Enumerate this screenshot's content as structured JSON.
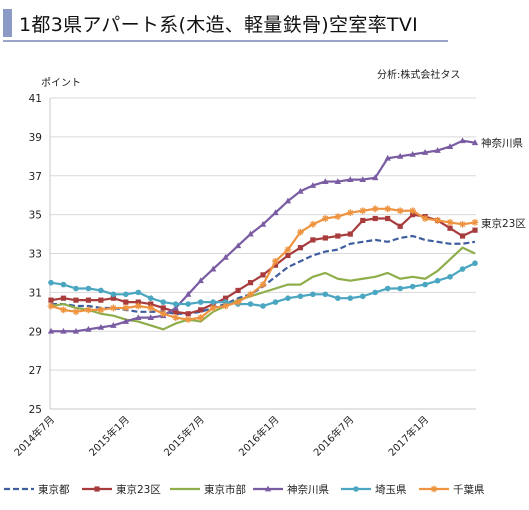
{
  "title": "1都3県アパート系(木造、軽量鉄骨)空室率TVI",
  "chart_data": {
    "type": "line",
    "ylabel": "ポイント",
    "source_note": "分析:株式会社タス",
    "ylim": [
      25,
      41
    ],
    "yticks": [
      25,
      27,
      29,
      31,
      33,
      35,
      37,
      39,
      41
    ],
    "grid": "horizontal",
    "legend_placement": "bottom",
    "x": [
      "2014年7月",
      "2014年8月",
      "2014年9月",
      "2014年10月",
      "2014年11月",
      "2014年12月",
      "2015年1月",
      "2015年2月",
      "2015年3月",
      "2015年4月",
      "2015年5月",
      "2015年6月",
      "2015年7月",
      "2015年8月",
      "2015年9月",
      "2015年10月",
      "2015年11月",
      "2015年12月",
      "2016年1月",
      "2016年2月",
      "2016年3月",
      "2016年4月",
      "2016年5月",
      "2016年6月",
      "2016年7月",
      "2016年8月",
      "2016年9月",
      "2016年10月",
      "2016年11月",
      "2016年12月",
      "2017年1月",
      "2017年2月",
      "2017年3月",
      "2017年4月",
      "2017年5月"
    ],
    "xtick_labels": [
      {
        "index": 0,
        "label": "2014年7月"
      },
      {
        "index": 6,
        "label": "2015年1月"
      },
      {
        "index": 12,
        "label": "2015年7月"
      },
      {
        "index": 18,
        "label": "2016年1月"
      },
      {
        "index": 24,
        "label": "2016年7月"
      },
      {
        "index": 30,
        "label": "2017年1月"
      }
    ],
    "series": [
      {
        "name": "東京都",
        "color": "#3f5e9f",
        "dash": true,
        "marker": "none",
        "values": [
          30.4,
          30.4,
          30.3,
          30.3,
          30.2,
          30.2,
          30.1,
          30.0,
          30.0,
          30.0,
          29.9,
          29.9,
          30.0,
          30.2,
          30.4,
          30.7,
          30.9,
          31.3,
          31.8,
          32.3,
          32.6,
          32.9,
          33.1,
          33.2,
          33.5,
          33.6,
          33.7,
          33.6,
          33.8,
          33.9,
          33.7,
          33.6,
          33.5,
          33.5,
          33.6
        ]
      },
      {
        "name": "東京23区",
        "color": "#a83c3c",
        "dash": false,
        "marker": "square",
        "values": [
          30.6,
          30.7,
          30.6,
          30.6,
          30.6,
          30.7,
          30.5,
          30.5,
          30.4,
          30.2,
          30.0,
          29.9,
          30.1,
          30.4,
          30.7,
          31.1,
          31.5,
          31.9,
          32.4,
          32.9,
          33.3,
          33.7,
          33.8,
          33.9,
          34.0,
          34.7,
          34.8,
          34.8,
          34.4,
          35.0,
          34.9,
          34.7,
          34.3,
          33.9,
          34.2
        ]
      },
      {
        "name": "東京市部",
        "color": "#8fad4a",
        "dash": false,
        "marker": "none",
        "values": [
          30.3,
          30.4,
          30.2,
          30.1,
          29.9,
          29.8,
          29.6,
          29.5,
          29.3,
          29.1,
          29.4,
          29.6,
          29.5,
          30.0,
          30.3,
          30.6,
          30.8,
          31.0,
          31.2,
          31.4,
          31.4,
          31.8,
          32.0,
          31.7,
          31.6,
          31.7,
          31.8,
          32.0,
          31.7,
          31.8,
          31.7,
          32.1,
          32.7,
          33.3,
          33.0
        ]
      },
      {
        "name": "神奈川県",
        "color": "#7a5ca3",
        "dash": false,
        "marker": "triangle",
        "values": [
          29.0,
          29.0,
          29.0,
          29.1,
          29.2,
          29.3,
          29.5,
          29.7,
          29.7,
          29.8,
          30.2,
          30.9,
          31.6,
          32.2,
          32.8,
          33.4,
          34.0,
          34.5,
          35.1,
          35.7,
          36.2,
          36.5,
          36.7,
          36.7,
          36.8,
          36.8,
          36.9,
          37.9,
          38.0,
          38.1,
          38.2,
          38.3,
          38.5,
          38.8,
          38.7
        ]
      },
      {
        "name": "埼玉県",
        "color": "#4aa6c1",
        "dash": false,
        "marker": "circle",
        "values": [
          31.5,
          31.4,
          31.2,
          31.2,
          31.1,
          30.9,
          30.9,
          31.0,
          30.7,
          30.5,
          30.4,
          30.4,
          30.5,
          30.5,
          30.5,
          30.4,
          30.4,
          30.3,
          30.5,
          30.7,
          30.8,
          30.9,
          30.9,
          30.7,
          30.7,
          30.8,
          31.0,
          31.2,
          31.2,
          31.3,
          31.4,
          31.6,
          31.8,
          32.2,
          32.5
        ]
      },
      {
        "name": "千葉県",
        "color": "#ee9340",
        "dash": false,
        "marker": "star",
        "values": [
          30.3,
          30.1,
          30.0,
          30.1,
          30.1,
          30.2,
          30.2,
          30.3,
          30.2,
          29.9,
          29.7,
          29.6,
          29.7,
          30.2,
          30.3,
          30.5,
          30.9,
          31.4,
          32.6,
          33.2,
          34.1,
          34.5,
          34.8,
          34.9,
          35.1,
          35.2,
          35.3,
          35.3,
          35.2,
          35.2,
          34.8,
          34.7,
          34.6,
          34.5,
          34.6
        ]
      }
    ],
    "annotations": [
      {
        "text": "神奈川県",
        "series": "神奈川県"
      },
      {
        "text": "東京23区",
        "series": "東京23区"
      }
    ]
  }
}
